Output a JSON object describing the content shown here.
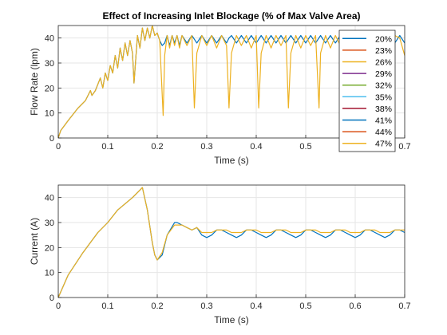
{
  "figure": {
    "background": "#ffffff",
    "axes_color": "#262626",
    "grid_color": "#e6e6e6"
  },
  "chart_data": [
    {
      "type": "line",
      "title": "Effect of Increasing Inlet Blockage (% of Max Valve Area)",
      "xlabel": "Time (s)",
      "ylabel": "Flow Rate (lpm)",
      "xlim": [
        0,
        0.7
      ],
      "ylim": [
        0,
        45
      ],
      "xticks": [
        0,
        0.1,
        0.2,
        0.3,
        0.4,
        0.5,
        0.6,
        0.7
      ],
      "xtick_labels": [
        "0",
        "0.1",
        "0.2",
        "0.3",
        "0.4",
        "0.5",
        "0.6",
        "0.7"
      ],
      "yticks": [
        0,
        10,
        20,
        30,
        40
      ],
      "ytick_labels": [
        "0",
        "10",
        "20",
        "30",
        "40"
      ],
      "grid": true,
      "legend_position": "right",
      "series": [
        {
          "name": "20%",
          "color": "#0072BD",
          "x": [
            0,
            0.005,
            0.02,
            0.04,
            0.055,
            0.065,
            0.068,
            0.075,
            0.085,
            0.09,
            0.095,
            0.1,
            0.105,
            0.11,
            0.115,
            0.12,
            0.125,
            0.13,
            0.135,
            0.14,
            0.145,
            0.15,
            0.153,
            0.16,
            0.165,
            0.17,
            0.175,
            0.18,
            0.185,
            0.19,
            0.195,
            0.2,
            0.205,
            0.21,
            0.215,
            0.22,
            0.225,
            0.23,
            0.235,
            0.24,
            0.245,
            0.25,
            0.26,
            0.27,
            0.28,
            0.29,
            0.3,
            0.31,
            0.32,
            0.33,
            0.34,
            0.345,
            0.35,
            0.36,
            0.37,
            0.38,
            0.39,
            0.4,
            0.41,
            0.42,
            0.43,
            0.44,
            0.45,
            0.46,
            0.47,
            0.48,
            0.49,
            0.5,
            0.51,
            0.52,
            0.53,
            0.54,
            0.55,
            0.56,
            0.57,
            0.58,
            0.59,
            0.6,
            0.61,
            0.62,
            0.63,
            0.64,
            0.65,
            0.66,
            0.67,
            0.68,
            0.69,
            0.7
          ],
          "y": [
            0,
            3,
            7,
            12,
            15,
            19,
            17,
            19,
            24,
            20,
            26,
            23,
            29,
            26,
            33,
            28,
            36,
            31,
            38,
            33,
            39,
            34,
            22,
            41,
            36,
            44,
            39,
            44,
            40,
            45,
            41,
            42,
            39,
            37,
            38,
            41,
            37,
            41,
            38,
            41,
            37,
            41,
            38,
            41,
            38,
            41,
            38,
            41,
            38,
            41,
            38,
            40,
            41,
            38,
            41,
            38,
            41,
            38,
            41,
            38,
            41,
            38,
            41,
            38,
            41,
            38,
            41,
            38,
            41,
            38,
            41,
            38,
            41,
            38,
            41,
            38,
            41,
            38,
            41,
            38,
            41,
            38,
            41,
            38,
            41,
            38,
            41,
            38
          ]
        },
        {
          "name": "23%",
          "color": "#D95319"
        },
        {
          "name": "26%",
          "color": "#EDB120"
        },
        {
          "name": "29%",
          "color": "#7E2F8E"
        },
        {
          "name": "32%",
          "color": "#77AC30"
        },
        {
          "name": "35%",
          "color": "#4DBEEE"
        },
        {
          "name": "38%",
          "color": "#A2142F"
        },
        {
          "name": "41%",
          "color": "#0072BD"
        },
        {
          "name": "44%",
          "color": "#D95319"
        },
        {
          "name": "47%",
          "color": "#EDB120",
          "x": [
            0,
            0.005,
            0.02,
            0.04,
            0.055,
            0.065,
            0.068,
            0.075,
            0.085,
            0.09,
            0.095,
            0.1,
            0.105,
            0.11,
            0.115,
            0.12,
            0.125,
            0.13,
            0.135,
            0.14,
            0.145,
            0.15,
            0.153,
            0.16,
            0.165,
            0.17,
            0.175,
            0.18,
            0.185,
            0.19,
            0.195,
            0.2,
            0.205,
            0.212,
            0.215,
            0.22,
            0.225,
            0.23,
            0.235,
            0.24,
            0.245,
            0.25,
            0.26,
            0.27,
            0.275,
            0.28,
            0.29,
            0.3,
            0.31,
            0.32,
            0.33,
            0.34,
            0.345,
            0.35,
            0.36,
            0.37,
            0.38,
            0.39,
            0.4,
            0.405,
            0.41,
            0.42,
            0.43,
            0.44,
            0.45,
            0.46,
            0.465,
            0.47,
            0.48,
            0.49,
            0.5,
            0.51,
            0.52,
            0.527,
            0.53,
            0.54,
            0.55,
            0.56,
            0.57,
            0.58,
            0.59,
            0.6,
            0.61,
            0.62,
            0.63,
            0.64,
            0.65,
            0.66,
            0.67,
            0.68,
            0.69,
            0.7
          ],
          "y": [
            0,
            3,
            7,
            12,
            15,
            19,
            17,
            19,
            24,
            20,
            26,
            23,
            29,
            26,
            33,
            28,
            36,
            31,
            38,
            33,
            39,
            34,
            22,
            41,
            36,
            44,
            39,
            44,
            40,
            45,
            41,
            42,
            39,
            9,
            33,
            41,
            36,
            41,
            37,
            41,
            36,
            41,
            37,
            41,
            12,
            34,
            41,
            37,
            41,
            36,
            41,
            37,
            12,
            34,
            41,
            37,
            41,
            36,
            41,
            12,
            34,
            41,
            36,
            41,
            37,
            41,
            12,
            34,
            41,
            36,
            41,
            37,
            41,
            12,
            34,
            41,
            36,
            41,
            37,
            41,
            36,
            41,
            37,
            41,
            36,
            41,
            37,
            41,
            36,
            41,
            40,
            33
          ]
        }
      ]
    },
    {
      "type": "line",
      "title": "",
      "xlabel": "Time (s)",
      "ylabel": "Current (A)",
      "xlim": [
        0,
        0.7
      ],
      "ylim": [
        0,
        45
      ],
      "xticks": [
        0,
        0.1,
        0.2,
        0.3,
        0.4,
        0.5,
        0.6,
        0.7
      ],
      "xtick_labels": [
        "0",
        "0.1",
        "0.2",
        "0.3",
        "0.4",
        "0.5",
        "0.6",
        "0.7"
      ],
      "yticks": [
        0,
        10,
        20,
        30,
        40
      ],
      "ytick_labels": [
        "0",
        "10",
        "20",
        "30",
        "40"
      ],
      "grid": true,
      "series": [
        {
          "color": "#0072BD",
          "x": [
            0,
            0.02,
            0.05,
            0.08,
            0.1,
            0.12,
            0.15,
            0.165,
            0.17,
            0.18,
            0.19,
            0.195,
            0.2,
            0.21,
            0.22,
            0.235,
            0.24,
            0.25,
            0.26,
            0.27,
            0.28,
            0.29,
            0.3,
            0.31,
            0.32,
            0.33,
            0.34,
            0.35,
            0.36,
            0.37,
            0.38,
            0.39,
            0.4,
            0.41,
            0.42,
            0.43,
            0.44,
            0.45,
            0.46,
            0.47,
            0.48,
            0.49,
            0.5,
            0.51,
            0.52,
            0.53,
            0.54,
            0.55,
            0.56,
            0.57,
            0.58,
            0.59,
            0.6,
            0.61,
            0.62,
            0.63,
            0.64,
            0.65,
            0.66,
            0.67,
            0.68,
            0.69,
            0.7
          ],
          "y": [
            0,
            9,
            18,
            26,
            30,
            35,
            40,
            43,
            44,
            35,
            22,
            17,
            15,
            17,
            25,
            30,
            30,
            29,
            28,
            27,
            28,
            25,
            24,
            25,
            27,
            27,
            26,
            25,
            24,
            25,
            27,
            27,
            26,
            25,
            24,
            25,
            27,
            27,
            26,
            25,
            24,
            25,
            27,
            27,
            26,
            25,
            24,
            25,
            27,
            27,
            26,
            25,
            24,
            25,
            27,
            27,
            26,
            25,
            24,
            25,
            27,
            27,
            26
          ]
        },
        {
          "color": "#EDB120",
          "x": [
            0,
            0.02,
            0.05,
            0.08,
            0.1,
            0.12,
            0.15,
            0.165,
            0.17,
            0.18,
            0.19,
            0.195,
            0.2,
            0.21,
            0.22,
            0.235,
            0.24,
            0.25,
            0.26,
            0.27,
            0.28,
            0.29,
            0.3,
            0.31,
            0.32,
            0.33,
            0.34,
            0.35,
            0.36,
            0.37,
            0.38,
            0.39,
            0.4,
            0.41,
            0.42,
            0.43,
            0.44,
            0.45,
            0.46,
            0.47,
            0.48,
            0.49,
            0.5,
            0.51,
            0.52,
            0.53,
            0.54,
            0.55,
            0.56,
            0.57,
            0.58,
            0.59,
            0.6,
            0.61,
            0.62,
            0.63,
            0.64,
            0.65,
            0.66,
            0.67,
            0.68,
            0.69,
            0.7
          ],
          "y": [
            0,
            9,
            18,
            26,
            30,
            35,
            40,
            43,
            44,
            35,
            22,
            17,
            15,
            18,
            25,
            29,
            29,
            29,
            28,
            27,
            28,
            26,
            26,
            26,
            27,
            27,
            27,
            26,
            26,
            26,
            27,
            27,
            27,
            26,
            26,
            26,
            27,
            27,
            27,
            26,
            26,
            26,
            27,
            27,
            27,
            26,
            26,
            26,
            27,
            27,
            27,
            26,
            26,
            26,
            27,
            27,
            27,
            26,
            26,
            26,
            27,
            27,
            27
          ]
        }
      ]
    }
  ]
}
